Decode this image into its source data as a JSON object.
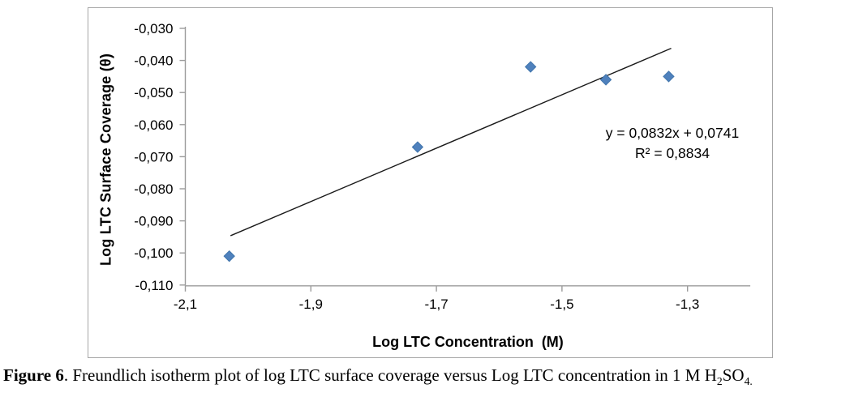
{
  "chart_data": {
    "type": "scatter",
    "title": "",
    "xlabel": "Log LTC Concentration  (M)",
    "ylabel": "Log LTC Surface Coverage (θ)",
    "xlim": [
      -2.1,
      -1.2
    ],
    "ylim": [
      -0.11,
      -0.03
    ],
    "grid": false,
    "legend": "none",
    "x_ticks": [
      {
        "value": -2.1,
        "label": "-2,1"
      },
      {
        "value": -1.9,
        "label": "-1,9"
      },
      {
        "value": -1.7,
        "label": "-1,7"
      },
      {
        "value": -1.5,
        "label": "-1,5"
      },
      {
        "value": -1.3,
        "label": "-1,3"
      }
    ],
    "y_ticks": [
      {
        "value": -0.03,
        "label": "-0,030"
      },
      {
        "value": -0.04,
        "label": "-0,040"
      },
      {
        "value": -0.05,
        "label": "-0,050"
      },
      {
        "value": -0.06,
        "label": "-0,060"
      },
      {
        "value": -0.07,
        "label": "-0,070"
      },
      {
        "value": -0.08,
        "label": "-0,080"
      },
      {
        "value": -0.09,
        "label": "-0,090"
      },
      {
        "value": -0.1,
        "label": "-0,100"
      },
      {
        "value": -0.11,
        "label": "-0,110"
      }
    ],
    "points": [
      {
        "x": -2.03,
        "y": -0.101
      },
      {
        "x": -1.73,
        "y": -0.067
      },
      {
        "x": -1.55,
        "y": -0.042
      },
      {
        "x": -1.43,
        "y": -0.046
      },
      {
        "x": -1.33,
        "y": -0.045
      }
    ],
    "trendline": {
      "slope": 0.0832,
      "intercept": 0.0741,
      "x_start": -2.028,
      "x_end": -1.326,
      "equation": "y = 0,0832x + 0,0741",
      "r_squared": "R² = 0,8834"
    },
    "marker_color": "#4f81bd",
    "marker_edge_color": "#4175ac",
    "axis_color": "#9b9b9b",
    "trendline_color": "#1a1a1a"
  },
  "caption": {
    "figure_label": "Figure 6",
    "body": ". Freundlich isotherm plot of log LTC surface coverage versus Log LTC concentration in 1 M H",
    "h_sub": "2",
    "so": "SO",
    "so_sub": "4."
  }
}
